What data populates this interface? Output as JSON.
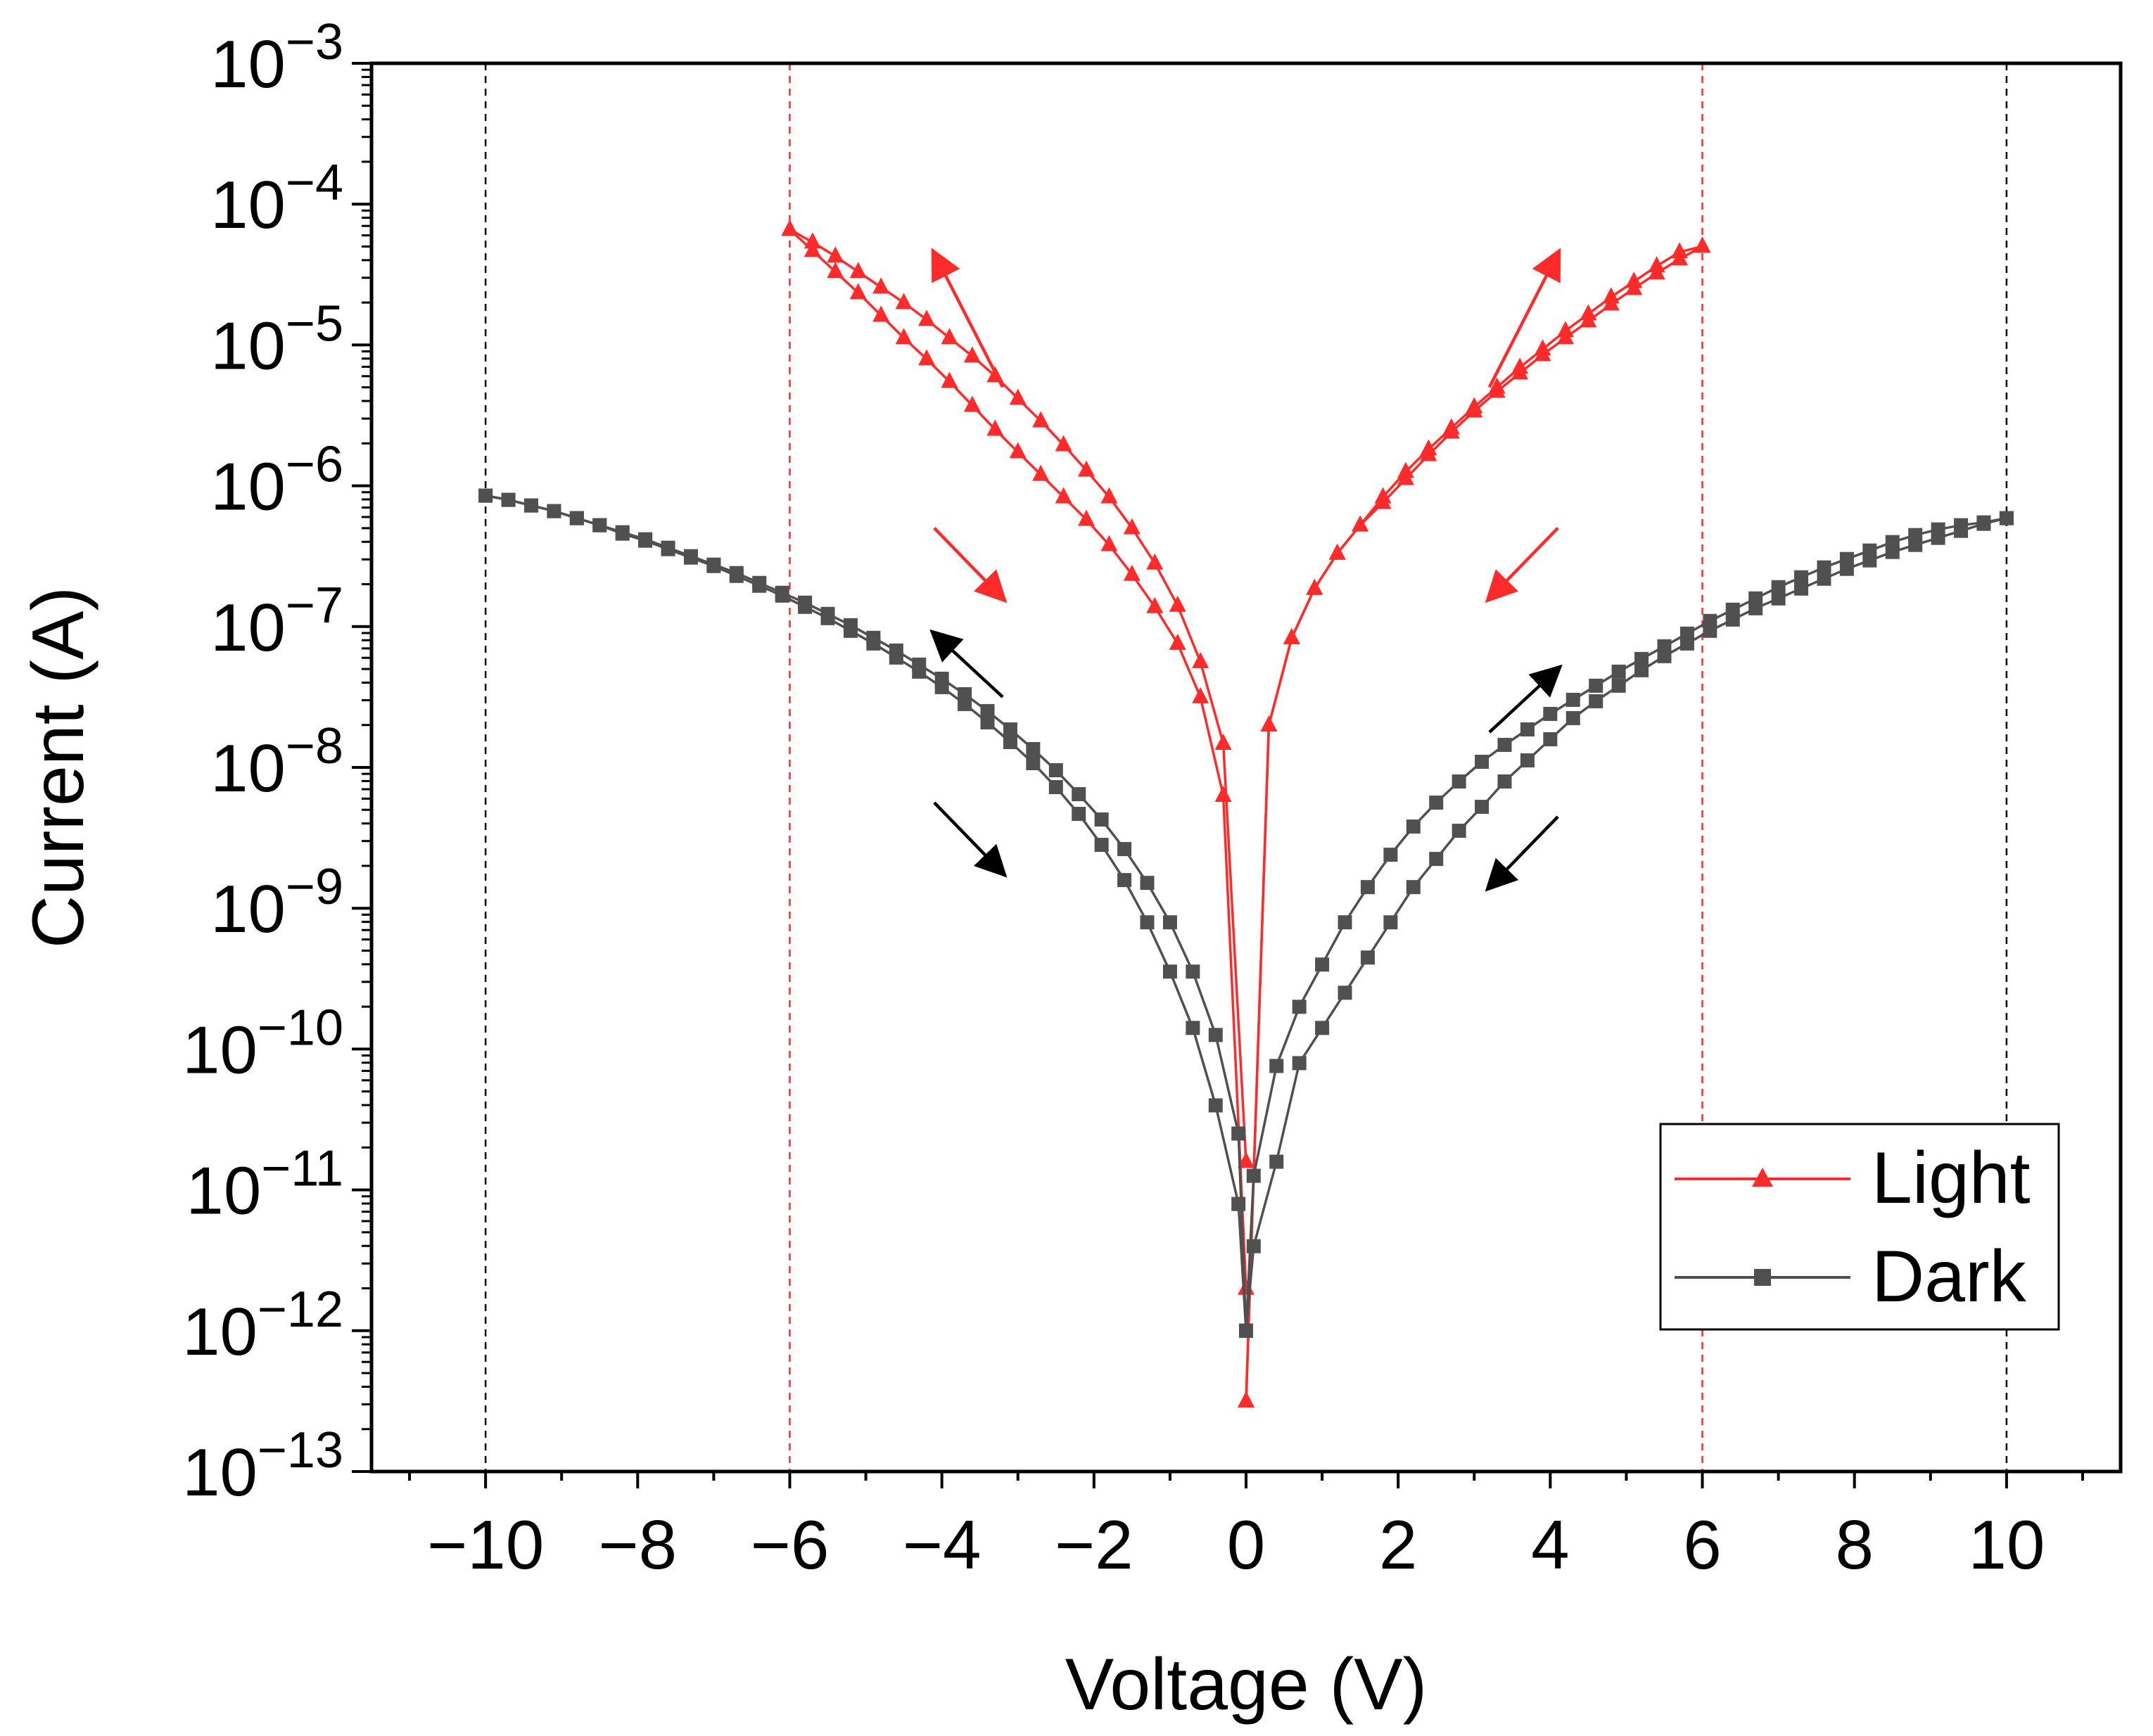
{
  "chart_data": {
    "type": "line",
    "xlabel": "Voltage (V)",
    "ylabel": "Current (A)",
    "xlim": [
      -11.5,
      11.5
    ],
    "ylim_exponent": [
      -13,
      -3
    ],
    "yscale": "log",
    "x_ticks": [
      -10,
      -8,
      -6,
      -4,
      -2,
      0,
      2,
      4,
      6,
      8,
      10
    ],
    "x_tick_labels": [
      "−10",
      "−8",
      "−6",
      "−4",
      "−2",
      "0",
      "2",
      "4",
      "6",
      "8",
      "10"
    ],
    "y_tick_exponents": [
      -13,
      -12,
      -11,
      -10,
      -9,
      -8,
      -7,
      -6,
      -5,
      -4,
      -3
    ],
    "y_tick_base": "10",
    "y_tick_exponent_labels": [
      "−13",
      "−12",
      "−11",
      "−10",
      "−9",
      "−8",
      "−7",
      "−6",
      "−5",
      "−4",
      "−3"
    ],
    "legend": {
      "placement": "bottom-right",
      "entries": [
        "Light",
        "Dark"
      ]
    },
    "reference_lines": [
      {
        "x": -10,
        "color": "#000000"
      },
      {
        "x": -6,
        "color": "#ff2a2a"
      },
      {
        "x": 6,
        "color": "#ff2a2a"
      },
      {
        "x": 10,
        "color": "#000000"
      }
    ],
    "series": [
      {
        "name": "Light",
        "color": "#ff2a2a",
        "marker": "triangle",
        "branches": [
          {
            "x": [
              -6.0,
              -5.7,
              -5.4,
              -5.1,
              -4.8,
              -4.5,
              -4.2,
              -3.9,
              -3.6,
              -3.3,
              -3.0,
              -2.7,
              -2.4,
              -2.1,
              -1.8,
              -1.5,
              -1.2,
              -0.9,
              -0.6,
              -0.3,
              0.0
            ],
            "y_exp": [
              -4.18,
              -4.27,
              -4.37,
              -4.48,
              -4.59,
              -4.7,
              -4.82,
              -4.95,
              -5.08,
              -5.22,
              -5.38,
              -5.54,
              -5.71,
              -5.89,
              -6.08,
              -6.3,
              -6.55,
              -6.85,
              -7.25,
              -7.83,
              -10.8
            ]
          },
          {
            "x": [
              -6.0,
              -5.7,
              -5.4,
              -5.1,
              -4.8,
              -4.5,
              -4.2,
              -3.9,
              -3.6,
              -3.3,
              -3.0,
              -2.7,
              -2.4,
              -2.1,
              -1.8,
              -1.5,
              -1.2,
              -0.9,
              -0.6,
              -0.3,
              0.0
            ],
            "y_exp": [
              -4.18,
              -4.33,
              -4.48,
              -4.63,
              -4.79,
              -4.95,
              -5.1,
              -5.26,
              -5.43,
              -5.6,
              -5.76,
              -5.92,
              -6.08,
              -6.24,
              -6.42,
              -6.63,
              -6.86,
              -7.12,
              -7.5,
              -8.2,
              -11.7
            ]
          },
          {
            "x": [
              0.0,
              0.3,
              0.6,
              0.9,
              1.2,
              1.5,
              1.8,
              2.1,
              2.4,
              2.7,
              3.0,
              3.3,
              3.6,
              3.9,
              4.2,
              4.5,
              4.8,
              5.1,
              5.4,
              5.7,
              6.0
            ],
            "y_exp": [
              -12.5,
              -7.7,
              -7.08,
              -6.73,
              -6.48,
              -6.28,
              -6.08,
              -5.9,
              -5.74,
              -5.59,
              -5.44,
              -5.3,
              -5.16,
              -5.03,
              -4.9,
              -4.78,
              -4.66,
              -4.55,
              -4.44,
              -4.34,
              -4.3
            ]
          },
          {
            "x": [
              6.0,
              5.7,
              5.4,
              5.1,
              4.8,
              4.5,
              4.2,
              3.9,
              3.6,
              3.3,
              3.0,
              2.7,
              2.4,
              2.1,
              1.8,
              1.5,
              1.2,
              0.9,
              0.6,
              0.3,
              0.0
            ],
            "y_exp": [
              -4.3,
              -4.39,
              -4.49,
              -4.6,
              -4.71,
              -4.83,
              -4.95,
              -5.07,
              -5.2,
              -5.33,
              -5.47,
              -5.62,
              -5.78,
              -5.95,
              -6.12,
              -6.28,
              -6.48,
              -6.73,
              -7.08,
              -7.7,
              -12.5
            ]
          }
        ]
      },
      {
        "name": "Dark",
        "color": "#505050",
        "marker": "square",
        "branches": [
          {
            "x": [
              -10.0,
              -9.7,
              -9.4,
              -9.1,
              -8.8,
              -8.5,
              -8.2,
              -7.9,
              -7.6,
              -7.3,
              -7.0,
              -6.7,
              -6.4,
              -6.1,
              -5.8,
              -5.5,
              -5.2,
              -4.9,
              -4.6,
              -4.3,
              -4.0,
              -3.7,
              -3.4,
              -3.1,
              -2.8,
              -2.5,
              -2.2,
              -1.9,
              -1.6,
              -1.3,
              -1.0,
              -0.7,
              -0.4,
              -0.1,
              0.0
            ],
            "y_exp": [
              -6.07,
              -6.1,
              -6.14,
              -6.18,
              -6.23,
              -6.28,
              -6.33,
              -6.38,
              -6.44,
              -6.5,
              -6.56,
              -6.62,
              -6.69,
              -6.76,
              -6.83,
              -6.91,
              -6.99,
              -7.08,
              -7.17,
              -7.27,
              -7.37,
              -7.48,
              -7.6,
              -7.73,
              -7.87,
              -8.02,
              -8.19,
              -8.37,
              -8.58,
              -8.82,
              -9.1,
              -9.45,
              -9.9,
              -10.6,
              -12.0
            ]
          },
          {
            "x": [
              0.0,
              -0.1,
              -0.4,
              -0.7,
              -1.0,
              -1.3,
              -1.6,
              -1.9,
              -2.2,
              -2.5,
              -2.8,
              -3.1,
              -3.4,
              -3.7,
              -4.0,
              -4.3,
              -4.6,
              -4.9,
              -5.2,
              -5.5,
              -5.8,
              -6.1,
              -6.4,
              -6.7,
              -7.0,
              -7.3,
              -7.6,
              -7.9,
              -8.2,
              -8.5,
              -8.8,
              -9.1,
              -9.4,
              -9.7,
              -10.0
            ],
            "y_exp": [
              -12.0,
              -11.1,
              -10.4,
              -9.85,
              -9.45,
              -9.1,
              -8.8,
              -8.55,
              -8.33,
              -8.14,
              -7.97,
              -7.82,
              -7.68,
              -7.55,
              -7.43,
              -7.32,
              -7.22,
              -7.12,
              -7.03,
              -6.94,
              -6.86,
              -6.78,
              -6.71,
              -6.64,
              -6.57,
              -6.51,
              -6.45,
              -6.39,
              -6.34,
              -6.28,
              -6.23,
              -6.18,
              -6.14,
              -6.1,
              -6.07
            ]
          },
          {
            "x": [
              0.0,
              0.1,
              0.4,
              0.7,
              1.0,
              1.3,
              1.6,
              1.9,
              2.2,
              2.5,
              2.8,
              3.1,
              3.4,
              3.7,
              4.0,
              4.3,
              4.6,
              4.9,
              5.2,
              5.5,
              5.8,
              6.1,
              6.4,
              6.7,
              7.0,
              7.3,
              7.6,
              7.9,
              8.2,
              8.5,
              8.8,
              9.1,
              9.4,
              9.7,
              10.0
            ],
            "y_exp": [
              -12.0,
              -10.9,
              -10.12,
              -9.7,
              -9.4,
              -9.1,
              -8.85,
              -8.62,
              -8.42,
              -8.25,
              -8.1,
              -7.96,
              -7.84,
              -7.73,
              -7.62,
              -7.52,
              -7.42,
              -7.32,
              -7.23,
              -7.14,
              -7.05,
              -6.96,
              -6.88,
              -6.8,
              -6.72,
              -6.65,
              -6.58,
              -6.52,
              -6.46,
              -6.4,
              -6.35,
              -6.31,
              -6.28,
              -6.26,
              -6.23
            ]
          },
          {
            "x": [
              10.0,
              9.7,
              9.4,
              9.1,
              8.8,
              8.5,
              8.2,
              7.9,
              7.6,
              7.3,
              7.0,
              6.7,
              6.4,
              6.1,
              5.8,
              5.5,
              5.2,
              4.9,
              4.6,
              4.3,
              4.0,
              3.7,
              3.4,
              3.1,
              2.8,
              2.5,
              2.2,
              1.9,
              1.6,
              1.3,
              1.0,
              0.7,
              0.4,
              0.1,
              0.0
            ],
            "y_exp": [
              -6.23,
              -6.27,
              -6.32,
              -6.37,
              -6.42,
              -6.47,
              -6.53,
              -6.59,
              -6.66,
              -6.73,
              -6.8,
              -6.87,
              -6.95,
              -7.03,
              -7.12,
              -7.21,
              -7.31,
              -7.42,
              -7.53,
              -7.65,
              -7.8,
              -7.95,
              -8.1,
              -8.28,
              -8.45,
              -8.65,
              -8.85,
              -9.1,
              -9.35,
              -9.6,
              -9.85,
              -10.1,
              -10.8,
              -11.4,
              -12.0
            ]
          }
        ]
      }
    ],
    "direction_arrows": [
      {
        "series": "Light",
        "from": [
          -3.2,
          -5.3
        ],
        "to": [
          -4.1,
          -4.35
        ]
      },
      {
        "series": "Light",
        "from": [
          -4.1,
          -6.3
        ],
        "to": [
          -3.2,
          -6.8
        ]
      },
      {
        "series": "Light",
        "from": [
          3.2,
          -5.3
        ],
        "to": [
          4.1,
          -4.35
        ]
      },
      {
        "series": "Light",
        "from": [
          4.1,
          -6.3
        ],
        "to": [
          3.2,
          -6.8
        ]
      },
      {
        "series": "Dark",
        "from": [
          -3.2,
          -7.5
        ],
        "to": [
          -4.1,
          -7.05
        ]
      },
      {
        "series": "Dark",
        "from": [
          -4.1,
          -8.25
        ],
        "to": [
          -3.2,
          -8.75
        ]
      },
      {
        "series": "Dark",
        "from": [
          3.2,
          -7.75
        ],
        "to": [
          4.1,
          -7.3
        ]
      },
      {
        "series": "Dark",
        "from": [
          4.1,
          -8.35
        ],
        "to": [
          3.2,
          -8.85
        ]
      }
    ]
  }
}
